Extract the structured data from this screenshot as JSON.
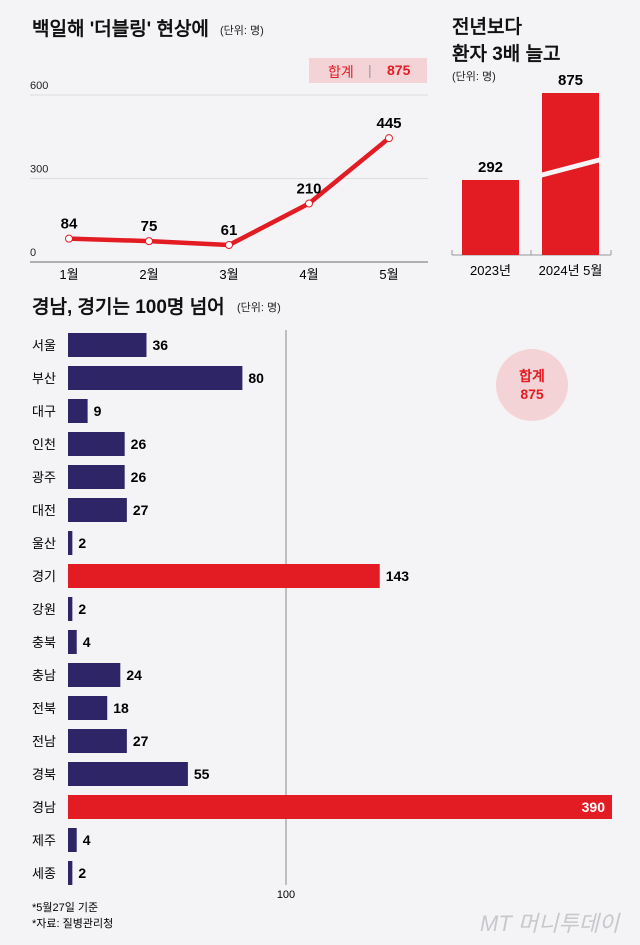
{
  "colors": {
    "red": "#e31b23",
    "navy": "#2e2566",
    "pink": "#f3d3d6"
  },
  "chart_data": [
    {
      "type": "line",
      "title": "백일해 '더블링' 현상에",
      "unit": "(단위: 명)",
      "total_label": "합계",
      "total_value": "875",
      "categories": [
        "1월",
        "2월",
        "3월",
        "4월",
        "5월"
      ],
      "values": [
        84,
        75,
        61,
        210,
        445
      ],
      "ylim": [
        0,
        600
      ],
      "yticks": [
        "0",
        "300",
        "600"
      ],
      "grid": true
    },
    {
      "type": "bar",
      "title_line1": "전년보다",
      "title_line2": "환자 3배 늘고",
      "unit": "(단위: 명)",
      "categories": [
        "2023년",
        "2024년 5월"
      ],
      "values": [
        292,
        875
      ],
      "axis_break": true
    },
    {
      "type": "bar",
      "orientation": "horizontal",
      "title": "경남, 경기는 100명 넘어",
      "unit": "(단위: 명)",
      "total_label": "합계",
      "total_value": "875",
      "reference_tick": "100",
      "categories": [
        "서울",
        "부산",
        "대구",
        "인천",
        "광주",
        "대전",
        "울산",
        "경기",
        "강원",
        "충북",
        "충남",
        "전북",
        "전남",
        "경북",
        "경남",
        "제주",
        "세종"
      ],
      "values": [
        36,
        80,
        9,
        26,
        26,
        27,
        2,
        143,
        2,
        4,
        24,
        18,
        27,
        55,
        390,
        4,
        2
      ],
      "highlight": [
        "경기",
        "경남"
      ],
      "axis_break_on": "경남"
    }
  ],
  "footnotes": [
    "*5월27일 기준",
    "*자료: 질병관리청"
  ],
  "logo": "MT 머니투데이"
}
